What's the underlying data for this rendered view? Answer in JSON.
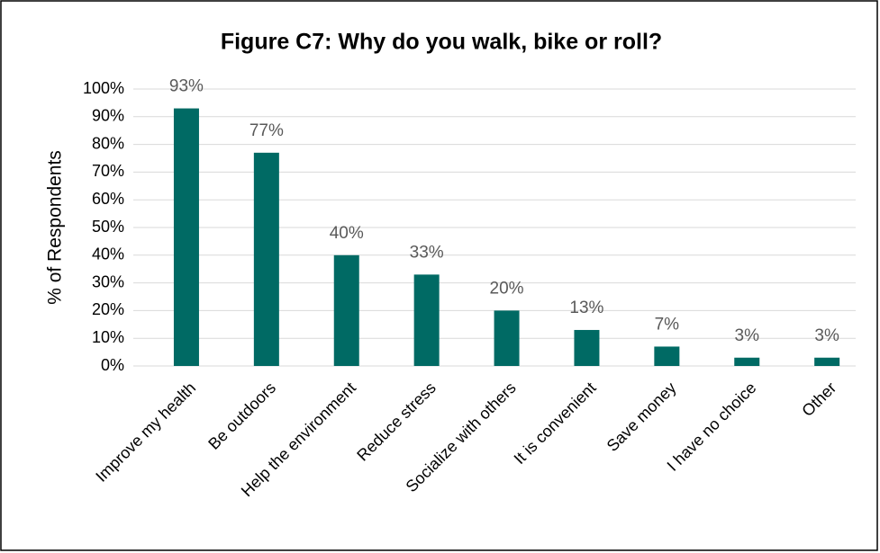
{
  "chart_data": {
    "type": "bar",
    "title": "Figure C7: Why do you walk, bike or roll?",
    "y_label": "% of Respondents",
    "categories": [
      "Improve my health",
      "Be outdoors",
      "Help the environment",
      "Reduce stress",
      "Socialize with others",
      "It is convenient",
      "Save money",
      "I have no choice",
      "Other"
    ],
    "values": [
      93,
      77,
      40,
      33,
      20,
      13,
      7,
      3,
      3
    ],
    "value_labels": [
      "93%",
      "77%",
      "40%",
      "33%",
      "20%",
      "13%",
      "7%",
      "3%",
      "3%"
    ],
    "color": "#006a64",
    "ylim": [
      0,
      100
    ],
    "yticks": [
      {
        "value": 0,
        "label": "0%"
      },
      {
        "value": 10,
        "label": "10%"
      },
      {
        "value": 20,
        "label": "20%"
      },
      {
        "value": 30,
        "label": "30%"
      },
      {
        "value": 40,
        "label": "40%"
      },
      {
        "value": 50,
        "label": "50%"
      },
      {
        "value": 60,
        "label": "60%"
      },
      {
        "value": 70,
        "label": "70%"
      },
      {
        "value": 80,
        "label": "80%"
      },
      {
        "value": 90,
        "label": "90%"
      },
      {
        "value": 100,
        "label": "100%"
      }
    ],
    "grid": true
  }
}
